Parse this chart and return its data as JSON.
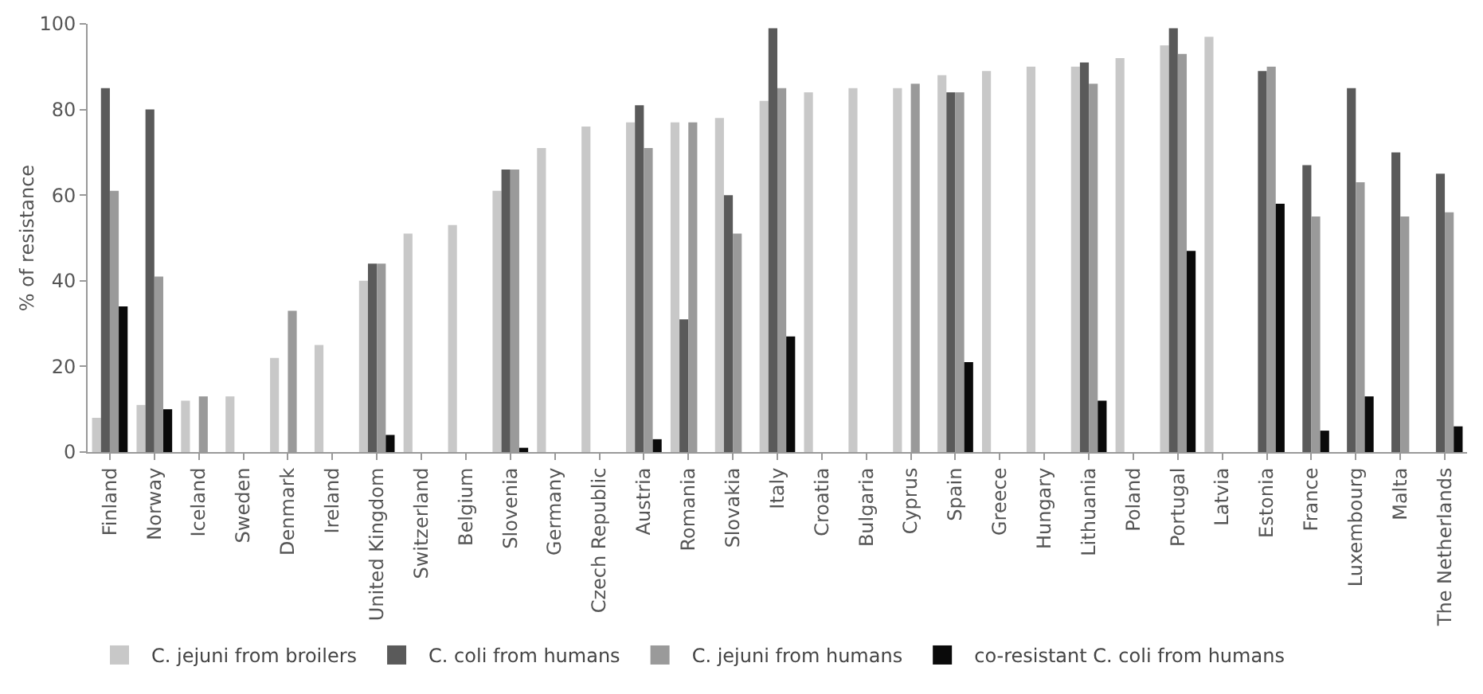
{
  "chart_data": {
    "type": "bar",
    "ylabel": "% of resistance",
    "categories": [
      "Finland",
      "Norway",
      "Iceland",
      "Sweden",
      "Denmark",
      "Ireland",
      "United Kingdom",
      "Switzerland",
      "Belgium",
      "Slovenia",
      "Germany",
      "Czech Republic",
      "Austria",
      "Romania",
      "Slovakia",
      "Italy",
      "Croatia",
      "Bulgaria",
      "Cyprus",
      "Spain",
      "Greece",
      "Hungary",
      "Lithuania",
      "Poland",
      "Portugal",
      "Latvia",
      "Estonia",
      "France",
      "Luxembourg",
      "Malta",
      "The Netherlands"
    ],
    "series": [
      {
        "name": "C. jejuni from broilers",
        "color": "#c8c8c8",
        "values": [
          8,
          11,
          12,
          13,
          22,
          25,
          40,
          51,
          53,
          61,
          71,
          76,
          77,
          77,
          78,
          82,
          84,
          85,
          85,
          88,
          89,
          90,
          90,
          92,
          95,
          97,
          null,
          null,
          null,
          null,
          null
        ]
      },
      {
        "name": "C. coli from humans",
        "color": "#5a5a5a",
        "values": [
          85,
          80,
          null,
          null,
          null,
          null,
          44,
          null,
          null,
          66,
          null,
          null,
          81,
          31,
          60,
          99,
          null,
          null,
          null,
          84,
          null,
          null,
          91,
          null,
          99,
          null,
          89,
          67,
          85,
          70,
          65
        ]
      },
      {
        "name": "C. jejuni from humans",
        "color": "#9a9a9a",
        "values": [
          61,
          41,
          13,
          null,
          33,
          null,
          44,
          null,
          null,
          66,
          null,
          null,
          71,
          77,
          51,
          85,
          null,
          null,
          86,
          84,
          null,
          null,
          86,
          null,
          93,
          null,
          90,
          55,
          63,
          55,
          56
        ]
      },
      {
        "name": "co-resistant C. coli from humans",
        "color": "#0a0a0a",
        "values": [
          34,
          10,
          null,
          null,
          null,
          null,
          4,
          null,
          null,
          1,
          null,
          null,
          3,
          null,
          null,
          27,
          null,
          null,
          null,
          21,
          null,
          null,
          12,
          null,
          47,
          null,
          58,
          5,
          13,
          null,
          6
        ]
      }
    ],
    "ylim": [
      0,
      100
    ],
    "yticks": [
      0,
      20,
      40,
      60,
      80,
      100
    ],
    "grid": false,
    "legend": "bottom"
  }
}
